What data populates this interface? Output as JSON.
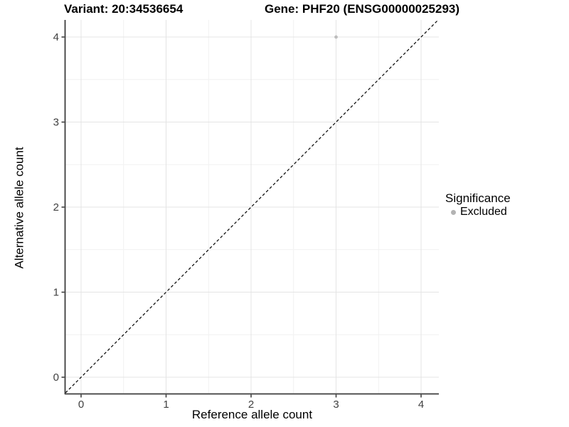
{
  "header": {
    "variant_title": "Variant: 20:34536654",
    "gene_title": "Gene: PHF20 (ENSG00000025293)"
  },
  "axes": {
    "x": {
      "label": "Reference allele count",
      "tick_labels": [
        "0",
        "1",
        "2",
        "3",
        "4"
      ]
    },
    "y": {
      "label": "Alternative allele count",
      "tick_labels": [
        "0",
        "1",
        "2",
        "3",
        "4"
      ]
    }
  },
  "legend": {
    "title": "Significance",
    "items": [
      {
        "label": "Excluded",
        "color": "#b3b3b3"
      }
    ]
  },
  "colors": {
    "background": "#ffffff",
    "grid_major": "#e4e4e4",
    "grid_minor": "#f1f1f1",
    "axis_line": "#3c3c3c",
    "tick_mark": "#333333",
    "tick_label": "#404040",
    "point": "#bdbdbd",
    "identity_line": "#000000"
  },
  "chart_data": {
    "type": "scatter",
    "title": "Variant: 20:34536654 | Gene: PHF20 (ENSG00000025293)",
    "xlabel": "Reference allele count",
    "ylabel": "Alternative allele count",
    "xlim": [
      -0.184,
      4.209
    ],
    "ylim": [
      -0.192,
      4.201
    ],
    "x_ticks": {
      "values": [
        0,
        1,
        2,
        3,
        4
      ],
      "labels": [
        "0",
        "1",
        "2",
        "3",
        "4"
      ],
      "minor": [
        0.5,
        1.5,
        2.5,
        3.5
      ]
    },
    "y_ticks": {
      "values": [
        0,
        1,
        2,
        3,
        4
      ],
      "labels": [
        "0",
        "1",
        "2",
        "3",
        "4"
      ],
      "minor": [
        0.5,
        1.5,
        2.5,
        3.5
      ]
    },
    "grid": "major+minor",
    "legend_position": "right",
    "reference_line": {
      "type": "identity",
      "slope": 1,
      "intercept": 0,
      "style": "dashed",
      "color": "#000000"
    },
    "series": [
      {
        "name": "Excluded",
        "color": "#bdbdbd",
        "marker": "circle",
        "points": [
          {
            "x": 3,
            "y": 4
          }
        ]
      }
    ]
  }
}
